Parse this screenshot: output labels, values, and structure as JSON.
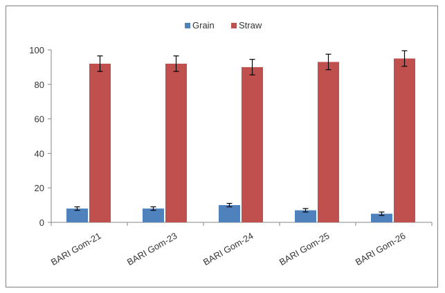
{
  "chart_data": {
    "type": "bar",
    "title": "",
    "xlabel": "",
    "ylabel": "",
    "categories": [
      "BARI Gom-21",
      "BARI Gom-23",
      "BARI Gom-24",
      "BARI Gom-25",
      "BARI Gom-26"
    ],
    "series": [
      {
        "name": "Grain",
        "values": [
          8,
          8,
          10,
          7,
          5
        ],
        "errors": [
          1,
          1,
          1,
          1,
          1
        ],
        "color": "#4f81bd"
      },
      {
        "name": "Straw",
        "values": [
          92,
          92,
          90,
          93,
          95
        ],
        "errors": [
          4.5,
          4.5,
          4.5,
          4.5,
          4.5
        ],
        "color": "#c0504d"
      }
    ],
    "ylim": [
      0,
      100
    ],
    "yticks": [
      0,
      20,
      40,
      60,
      80,
      100
    ],
    "grid": false,
    "legend": "top-center"
  }
}
